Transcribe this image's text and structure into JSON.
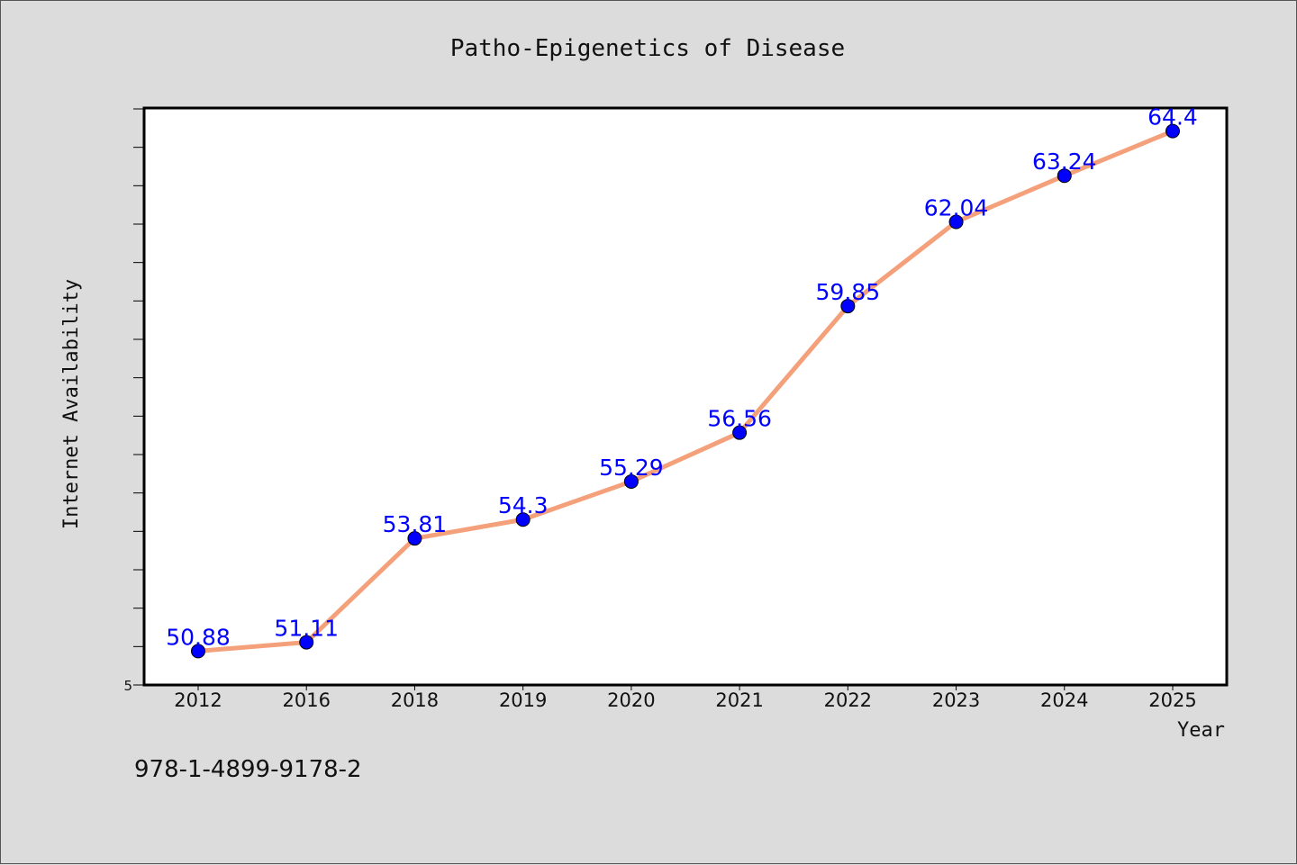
{
  "chart_data": {
    "type": "line",
    "title": "Patho-Epigenetics of Disease",
    "xlabel": "Year",
    "ylabel": "Internet Availability",
    "categories": [
      "2012",
      "2016",
      "2018",
      "2019",
      "2020",
      "2021",
      "2022",
      "2023",
      "2024",
      "2025"
    ],
    "series": [
      {
        "values": [
          50.88,
          51.11,
          53.81,
          54.3,
          55.29,
          56.56,
          59.85,
          62.04,
          63.24,
          64.4
        ],
        "labels": [
          "50.88",
          "51.11",
          "53.81",
          "54.3",
          "55.29",
          "56.56",
          "59.85",
          "62.04",
          "63.24",
          "64.4"
        ],
        "line_color": "#f4a07a",
        "marker_color": "#0000ff"
      }
    ],
    "ylim": [
      50,
      65
    ],
    "y_tick_labels": [
      "5"
    ],
    "grid": false,
    "legend": "none"
  },
  "footer": {
    "isbn": "978-1-4899-9178-2"
  }
}
